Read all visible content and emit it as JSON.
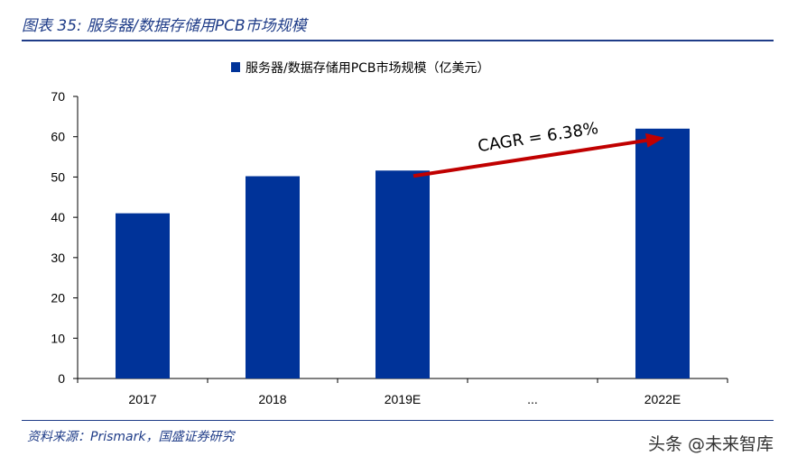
{
  "header": {
    "figure_title": "图表 35: 服务器/数据存储用PCB市场规模"
  },
  "footer": {
    "source": "资料来源：Prismark，国盛证券研究",
    "watermark": "头条 @未来智库"
  },
  "colors": {
    "bar": "#003399",
    "arrow": "#c00000",
    "title": "#1f3c88"
  },
  "chart_data": {
    "type": "bar",
    "title": "",
    "xlabel": "",
    "ylabel": "",
    "categories": [
      "2017",
      "2018",
      "2019E",
      "...",
      "2022E"
    ],
    "series": [
      {
        "name": "服务器/数据存储用PCB市场规模（亿美元）",
        "values": [
          41,
          50.2,
          51.6,
          null,
          62
        ]
      }
    ],
    "ylim": [
      0,
      70
    ],
    "yticks": [
      0,
      10,
      20,
      30,
      40,
      50,
      60,
      70
    ],
    "legend_position": "top-center",
    "grid": false,
    "annotation": {
      "text": "CAGR = 6.38%",
      "from_category": "2019E",
      "to_category": "2022E"
    }
  }
}
